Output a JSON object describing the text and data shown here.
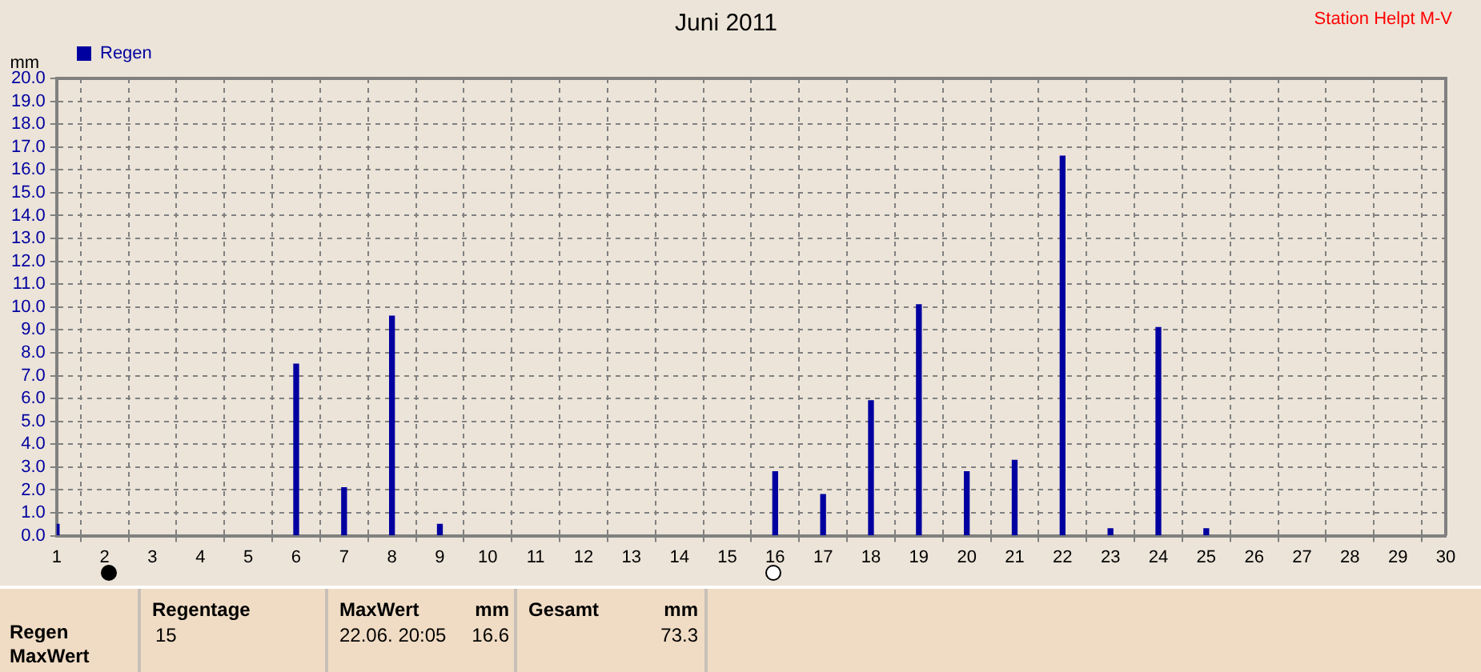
{
  "chart_data": {
    "type": "bar",
    "title": "Juni 2011",
    "ylabel": "mm",
    "x": [
      1,
      6,
      7,
      8,
      9,
      16,
      17,
      18,
      19,
      20,
      21,
      22,
      23,
      24,
      25
    ],
    "series": [
      {
        "name": "Regen",
        "color": "#0000a0",
        "values": [
          0.5,
          7.5,
          2.1,
          9.6,
          0.5,
          2.8,
          1.8,
          5.9,
          10.1,
          2.8,
          3.3,
          16.6,
          0.3,
          9.1,
          0.3
        ]
      }
    ],
    "xlim": [
      1,
      30
    ],
    "xticks": [
      1,
      2,
      3,
      4,
      5,
      6,
      7,
      8,
      9,
      10,
      11,
      12,
      13,
      14,
      15,
      16,
      17,
      18,
      19,
      20,
      21,
      22,
      23,
      24,
      25,
      26,
      27,
      28,
      29,
      30
    ],
    "ylim": [
      0,
      20
    ],
    "yticks": [
      {
        "value": 0,
        "label": "0.0"
      },
      {
        "value": 1,
        "label": "1.0"
      },
      {
        "value": 2,
        "label": "2.0"
      },
      {
        "value": 3,
        "label": "3.0"
      },
      {
        "value": 4,
        "label": "4.0"
      },
      {
        "value": 5,
        "label": "5.0"
      },
      {
        "value": 6,
        "label": "6.0"
      },
      {
        "value": 7,
        "label": "7.0"
      },
      {
        "value": 8,
        "label": "8.0"
      },
      {
        "value": 9,
        "label": "9.0"
      },
      {
        "value": 10,
        "label": "10.0"
      },
      {
        "value": 11,
        "label": "11.0"
      },
      {
        "value": 12,
        "label": "12.0"
      },
      {
        "value": 13,
        "label": "13.0"
      },
      {
        "value": 14,
        "label": "14.0"
      },
      {
        "value": 15,
        "label": "15.0"
      },
      {
        "value": 16,
        "label": "16.0"
      },
      {
        "value": 17,
        "label": "17.0"
      },
      {
        "value": 18,
        "label": "18.0"
      },
      {
        "value": 19,
        "label": "19.0"
      },
      {
        "value": 20,
        "label": "20.0"
      }
    ],
    "grid": true,
    "legend": "top left",
    "annotations": [
      "Station Helpt M-V",
      "Regen",
      "MaxWert",
      "Regentage",
      "15",
      "MaxWert",
      "mm",
      "22.06.  20:05",
      "16.6",
      "Gesamt",
      "mm",
      "73.3"
    ]
  }
}
